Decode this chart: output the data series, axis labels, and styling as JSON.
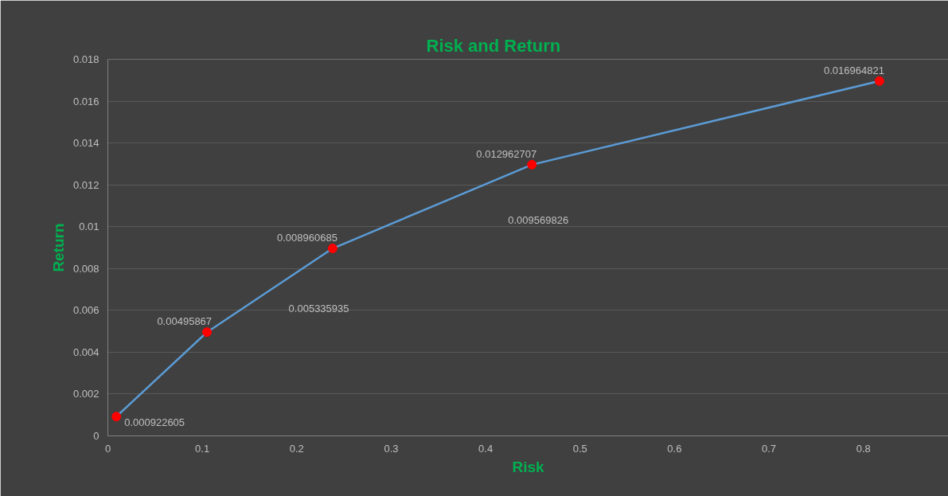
{
  "chart_data": {
    "type": "line",
    "title": "Risk and Return",
    "xlabel": "Risk",
    "ylabel": "Return",
    "xlim": [
      0,
      0.89
    ],
    "ylim": [
      0,
      0.018
    ],
    "xticks": [
      0,
      0.1,
      0.2,
      0.3,
      0.4,
      0.5,
      0.6,
      0.7,
      0.8
    ],
    "yticks": [
      0,
      0.002,
      0.004,
      0.006,
      0.008,
      0.01,
      0.012,
      0.014,
      0.016,
      0.018
    ],
    "grid": "y",
    "marker": "circle",
    "line_style": "solid",
    "x": [
      0.009,
      0.105,
      0.238,
      0.449,
      0.817
    ],
    "series": [
      {
        "color": "#5b9bd5",
        "colors": [
          "#ff0000",
          "#ff0000",
          "#ff0000",
          "#ff0000",
          "#ff0000"
        ],
        "values": [
          0.000922605,
          0.00495867,
          0.008960685,
          0.012962707,
          0.016964821
        ],
        "value_labels": [
          "0.000922605",
          "0.00495867",
          "0.008960685",
          "0.012962707",
          "0.016964821"
        ]
      }
    ],
    "annotations": [
      "0.009569826",
      "0.005335935"
    ]
  }
}
